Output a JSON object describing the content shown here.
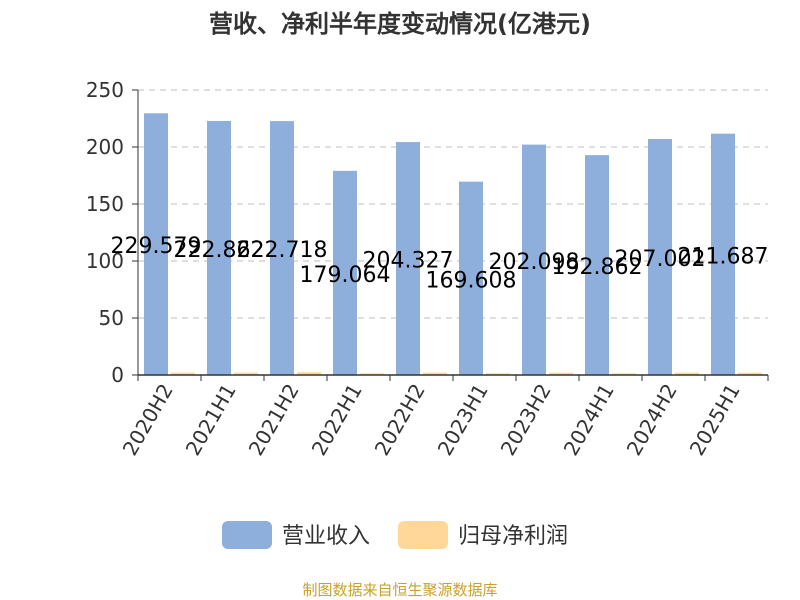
{
  "chart_data": {
    "type": "bar",
    "title": "营收、净利半年度变动情况(亿港元)",
    "xlabel": "",
    "ylabel": "",
    "ylim": [
      0,
      250
    ],
    "yticks": [
      0,
      50,
      100,
      150,
      200,
      250
    ],
    "grid": true,
    "legend_position": "bottom",
    "categories": [
      "2020H2",
      "2021H1",
      "2021H2",
      "2022H1",
      "2022H2",
      "2023H1",
      "2023H2",
      "2024H1",
      "2024H2",
      "2025H1"
    ],
    "series": [
      {
        "name": "营业收入",
        "color": "#8eaedb",
        "values": [
          229.579,
          222.862,
          222.718,
          179.064,
          204.327,
          169.608,
          202.098,
          192.862,
          207.002,
          211.687
        ],
        "labels": [
          "229.579",
          "222.862",
          "222.718",
          "179.064",
          "204.327",
          "169.608",
          "202.098",
          "192.862",
          "207.002",
          "211.687"
        ]
      },
      {
        "name": "归母净利润",
        "color": "#ffd899",
        "values": [
          2,
          2,
          2.5,
          1.5,
          2,
          1.5,
          2,
          1.5,
          2,
          2
        ],
        "labels": []
      }
    ]
  },
  "footer": {
    "source": "制图数据来自恒生聚源数据库"
  }
}
